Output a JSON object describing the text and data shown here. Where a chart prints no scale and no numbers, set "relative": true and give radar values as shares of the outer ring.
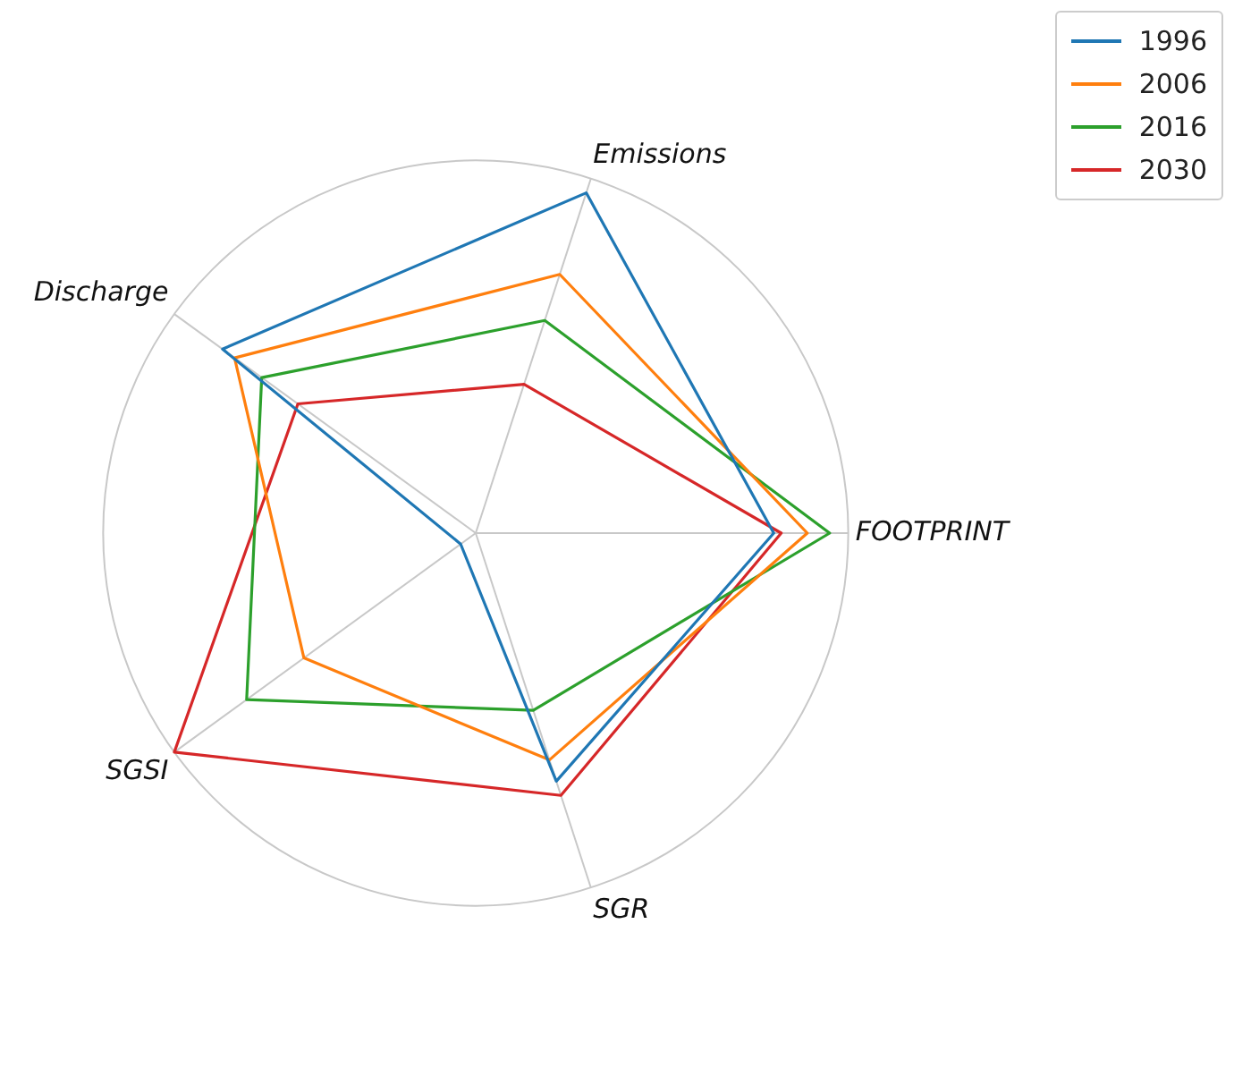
{
  "chart_data": {
    "type": "radar",
    "relative": true,
    "categories": [
      "Emissions",
      "FOOTPRINT",
      "SGR",
      "SGSI",
      "Discharge"
    ],
    "series": [
      {
        "name": "1996",
        "color": "#1f77b4",
        "values": [
          0.96,
          0.8,
          0.7,
          0.05,
          0.84
        ]
      },
      {
        "name": "2006",
        "color": "#ff7f0e",
        "values": [
          0.73,
          0.89,
          0.64,
          0.57,
          0.8
        ]
      },
      {
        "name": "2016",
        "color": "#2ca02c",
        "values": [
          0.6,
          0.95,
          0.5,
          0.76,
          0.71
        ]
      },
      {
        "name": "2030",
        "color": "#d62728",
        "values": [
          0.42,
          0.82,
          0.74,
          1.0,
          0.59
        ]
      }
    ],
    "legend": "top right",
    "grid": true,
    "marker": "none"
  }
}
